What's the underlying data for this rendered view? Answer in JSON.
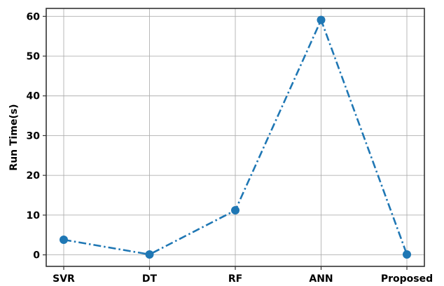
{
  "chart_data": {
    "type": "line",
    "title": "",
    "xlabel": "",
    "ylabel": "Run Time(s)",
    "categories": [
      "SVR",
      "DT",
      "RF",
      "ANN",
      "Proposed"
    ],
    "series": [
      {
        "values": [
          3.8,
          0.1,
          11.2,
          59.1,
          0.1
        ],
        "color": "#1f77b4",
        "line_style": "dash-dot",
        "marker": "circle"
      }
    ],
    "ylim": [
      -2.9,
      62
    ],
    "yticks": [
      0,
      10,
      20,
      30,
      40,
      50,
      60
    ],
    "grid": true,
    "legend": "none"
  }
}
